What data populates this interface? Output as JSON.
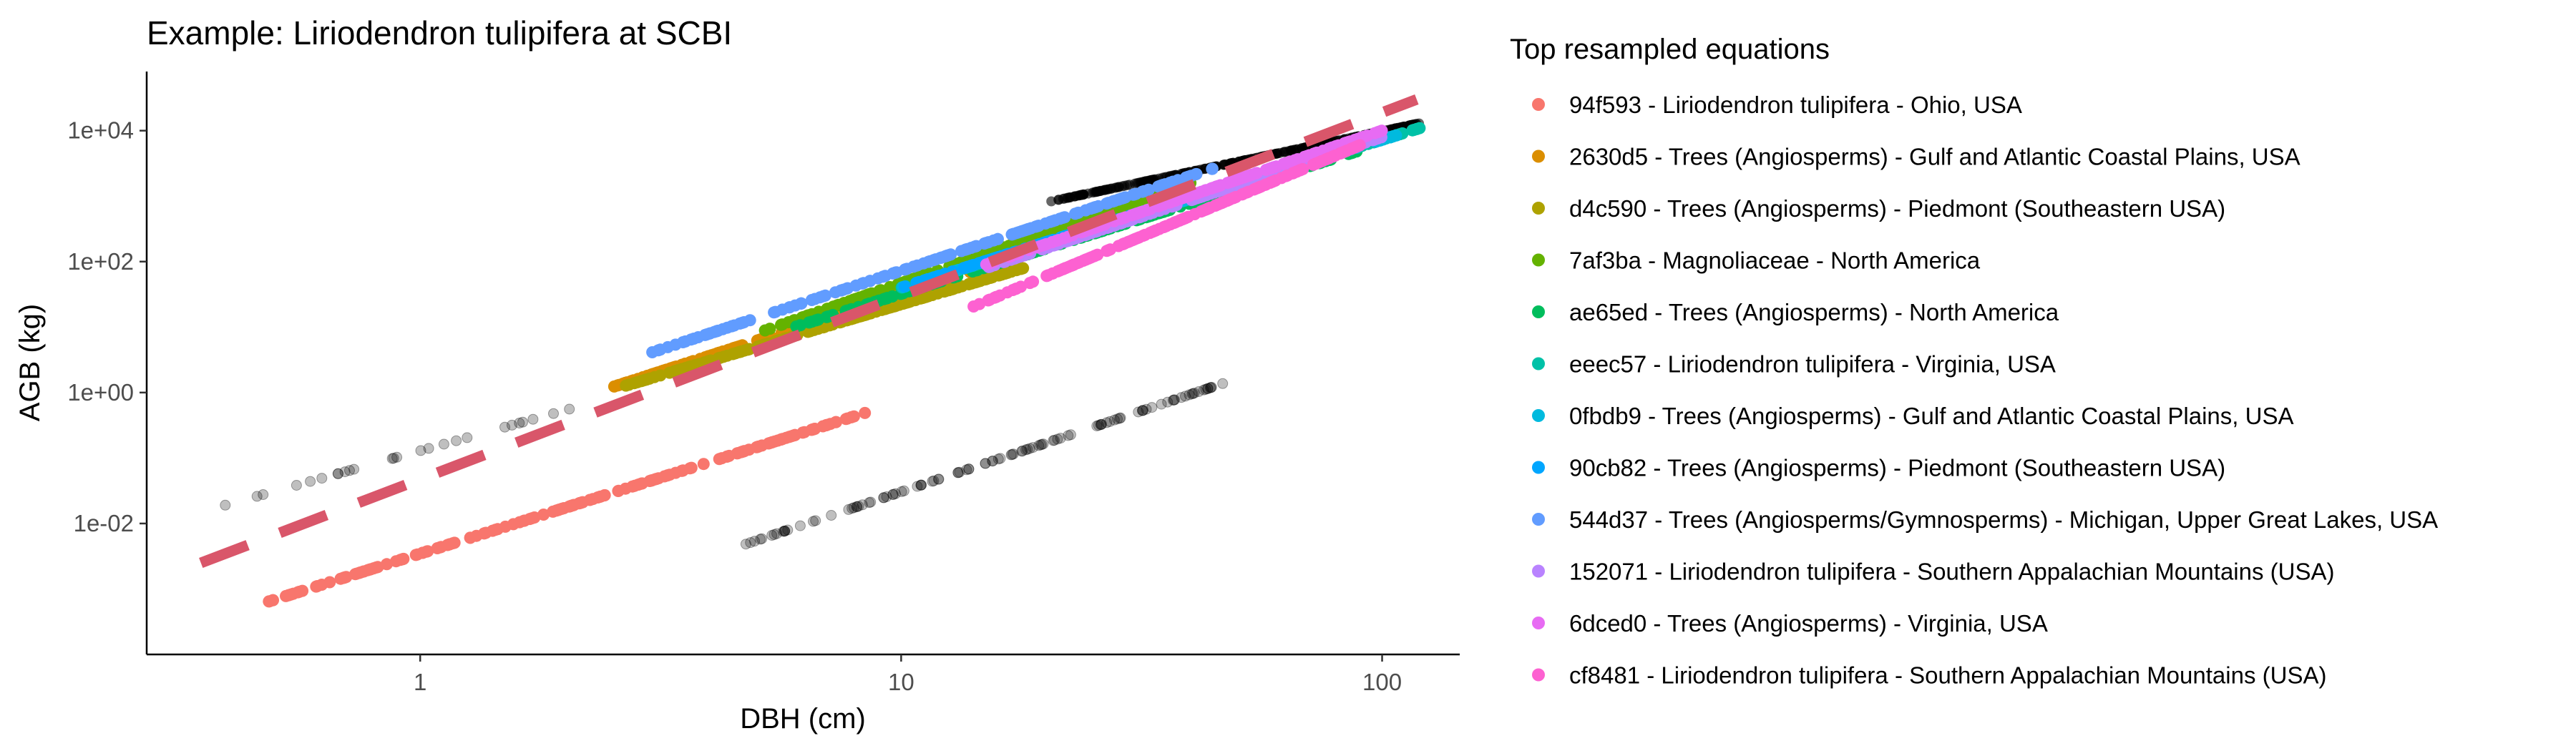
{
  "chart_data": {
    "type": "scatter",
    "title": "Example: Liriodendron tulipifera at SCBI",
    "xlabel": "DBH (cm)",
    "ylabel": "AGB (kg)",
    "x_scale": "log10",
    "y_scale": "log10",
    "xlim": [
      0.27,
      145
    ],
    "ylim": [
      0.0001,
      80000
    ],
    "x_ticks": [
      1,
      10,
      100
    ],
    "x_tick_labels": [
      "1",
      "10",
      "100"
    ],
    "y_ticks": [
      0.01,
      1,
      100,
      10000
    ],
    "y_tick_labels": [
      "1e-02",
      "1e+00",
      "1e+02",
      "1e+04"
    ],
    "grid": false,
    "legend_title": "Top resampled equations",
    "legend_position": "right",
    "series": [
      {
        "name": "94f593 - Liriodendron tulipifera - Ohio, USA",
        "color": "#F8766D",
        "x_range": [
          0.47,
          8.5
        ],
        "y_range": [
          0.0006,
          0.5
        ]
      },
      {
        "name": "2630d5 - Trees (Angiosperms) - Gulf and Atlantic Coastal Plains, USA",
        "color": "#DB8E00",
        "x_range": [
          2.5,
          14
        ],
        "y_range": [
          1.2,
          70
        ]
      },
      {
        "name": "d4c590 - Trees (Angiosperms) - Piedmont (Southeastern USA)",
        "color": "#AEA200",
        "x_range": [
          2.5,
          18
        ],
        "y_range": [
          1.1,
          80
        ]
      },
      {
        "name": "7af3ba - Magnoliaceae - North America",
        "color": "#64B200",
        "x_range": [
          5,
          40
        ],
        "y_range": [
          8,
          1600
        ]
      },
      {
        "name": "ae65ed - Trees (Angiosperms) - North America",
        "color": "#00BD5C",
        "x_range": [
          6,
          90
        ],
        "y_range": [
          10,
          5000
        ]
      },
      {
        "name": "eeec57 - Liriodendron tulipifera - Virginia, USA",
        "color": "#00C1A7",
        "x_range": [
          10,
          120
        ],
        "y_range": [
          40,
          11000
        ]
      },
      {
        "name": "0fbdb9 - Trees (Angiosperms) - Gulf and Atlantic Coastal Plains, USA",
        "color": "#00BADE",
        "x_range": [
          10,
          110
        ],
        "y_range": [
          40,
          9000
        ]
      },
      {
        "name": "90cb82 - Trees (Angiosperms) - Piedmont (Southeastern USA)",
        "color": "#00A6FF",
        "x_range": [
          10,
          60
        ],
        "y_range": [
          40,
          2500
        ]
      },
      {
        "name": "544d37 - Trees (Angiosperms/Gymnosperms) - Michigan, Upper Great Lakes, USA",
        "color": "#619CFF",
        "x_range": [
          3,
          47
        ],
        "y_range": [
          4,
          3000
        ]
      },
      {
        "name": "152071 - Liriodendron tulipifera - Southern Appalachian Mountains (USA)",
        "color": "#B983FF",
        "x_range": [
          15,
          100
        ],
        "y_range": [
          80,
          8000
        ]
      },
      {
        "name": "6dced0 - Trees (Angiosperms) - Virginia, USA",
        "color": "#E76BF3",
        "x_range": [
          15,
          100
        ],
        "y_range": [
          90,
          10000
        ]
      },
      {
        "name": "cf8481 - Liriodendron tulipifera - Southern Appalachian Mountains (USA)",
        "color": "#FD61D1",
        "x_range": [
          14,
          90
        ],
        "y_range": [
          20,
          6000
        ]
      }
    ],
    "reference_points": [
      {
        "color": "#000000",
        "opacity": 0.25,
        "x_range": [
          0.35,
          2.2
        ],
        "y_range": [
          0.015,
          0.65
        ]
      },
      {
        "color": "#000000",
        "opacity": 0.25,
        "x_range": [
          4.4,
          47
        ],
        "y_range": [
          0.004,
          1.4
        ]
      },
      {
        "color": "#000000",
        "opacity": 0.6,
        "x_range": [
          20,
          120
        ],
        "y_range": [
          800,
          13000
        ]
      }
    ],
    "dashed_line": {
      "color": "#D9566A",
      "x_range": [
        0.35,
        118
      ],
      "y_range": [
        0.0025,
        30000
      ]
    }
  }
}
